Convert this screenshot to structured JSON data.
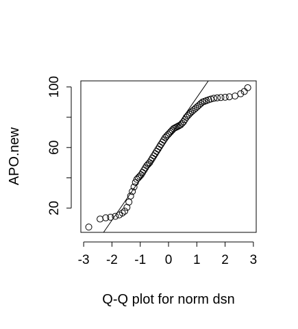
{
  "chart_data": {
    "type": "scatter",
    "title": "",
    "xlabel": "Q-Q plot for norm dsn",
    "ylabel": "APO.new",
    "xlim": [
      -3,
      3
    ],
    "ylim": [
      4,
      104
    ],
    "xticks": [
      {
        "value": -3,
        "label": "-3"
      },
      {
        "value": -2,
        "label": "-2"
      },
      {
        "value": -1,
        "label": "-1"
      },
      {
        "value": 0,
        "label": "0"
      },
      {
        "value": 1,
        "label": "1"
      },
      {
        "value": 2,
        "label": "2"
      },
      {
        "value": 3,
        "label": "3"
      }
    ],
    "yticks": [
      {
        "value": 20,
        "label": "20"
      },
      {
        "value": 40,
        "label": ""
      },
      {
        "value": 60,
        "label": "60"
      },
      {
        "value": 80,
        "label": ""
      },
      {
        "value": 100,
        "label": "100"
      }
    ],
    "grid": false,
    "legend": "none",
    "reference_line": {
      "intercept": 66,
      "slope": 27
    },
    "series": [
      {
        "marker": "open-circle",
        "points": [
          [
            -2.82,
            7.5
          ],
          [
            -2.42,
            12.8
          ],
          [
            -2.22,
            13.6
          ],
          [
            -2.05,
            14.0
          ],
          [
            -1.88,
            14.6
          ],
          [
            -1.74,
            15.5
          ],
          [
            -1.63,
            16.8
          ],
          [
            -1.55,
            18.0
          ],
          [
            -1.47,
            20.5
          ],
          [
            -1.4,
            24.0
          ],
          [
            -1.34,
            28.0
          ],
          [
            -1.28,
            31.0
          ],
          [
            -1.22,
            34.0
          ],
          [
            -1.17,
            37.0
          ],
          [
            -1.12,
            39.0
          ],
          [
            -1.07,
            40.0
          ],
          [
            -1.02,
            41.0
          ],
          [
            -0.97,
            42.0
          ],
          [
            -0.92,
            43.5
          ],
          [
            -0.87,
            45.0
          ],
          [
            -0.82,
            46.5
          ],
          [
            -0.77,
            48.0
          ],
          [
            -0.72,
            49.0
          ],
          [
            -0.67,
            50.0
          ],
          [
            -0.62,
            51.5
          ],
          [
            -0.57,
            53.0
          ],
          [
            -0.52,
            54.5
          ],
          [
            -0.47,
            56.0
          ],
          [
            -0.42,
            57.5
          ],
          [
            -0.37,
            59.0
          ],
          [
            -0.32,
            60.5
          ],
          [
            -0.27,
            62.0
          ],
          [
            -0.22,
            63.5
          ],
          [
            -0.17,
            65.0
          ],
          [
            -0.12,
            66.5
          ],
          [
            -0.07,
            67.5
          ],
          [
            -0.02,
            68.5
          ],
          [
            0.03,
            69.5
          ],
          [
            0.08,
            70.5
          ],
          [
            0.13,
            71.5
          ],
          [
            0.18,
            72.5
          ],
          [
            0.23,
            73.0
          ],
          [
            0.28,
            73.5
          ],
          [
            0.33,
            74.0
          ],
          [
            0.38,
            74.5
          ],
          [
            0.43,
            75.0
          ],
          [
            0.48,
            76.0
          ],
          [
            0.53,
            77.0
          ],
          [
            0.58,
            78.5
          ],
          [
            0.63,
            80.0
          ],
          [
            0.68,
            81.0
          ],
          [
            0.73,
            82.0
          ],
          [
            0.78,
            83.0
          ],
          [
            0.84,
            84.0
          ],
          [
            0.9,
            85.0
          ],
          [
            0.96,
            86.0
          ],
          [
            1.02,
            87.0
          ],
          [
            1.08,
            88.0
          ],
          [
            1.14,
            89.0
          ],
          [
            1.2,
            90.0
          ],
          [
            1.27,
            90.5
          ],
          [
            1.34,
            91.0
          ],
          [
            1.42,
            91.5
          ],
          [
            1.5,
            92.0
          ],
          [
            1.6,
            92.5
          ],
          [
            1.72,
            92.8
          ],
          [
            1.85,
            93.0
          ],
          [
            2.0,
            93.2
          ],
          [
            2.15,
            93.5
          ],
          [
            2.35,
            94.0
          ],
          [
            2.55,
            95.5
          ],
          [
            2.68,
            97.0
          ],
          [
            2.8,
            99.5
          ]
        ]
      }
    ]
  }
}
